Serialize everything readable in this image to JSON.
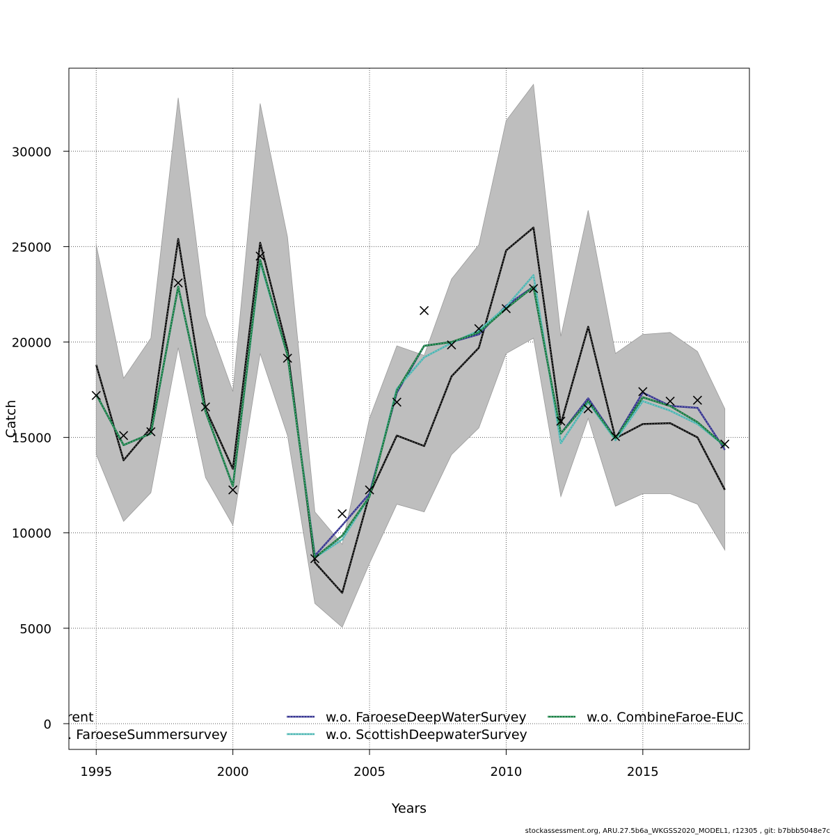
{
  "chart_data": {
    "type": "line",
    "xlabel": "Years",
    "ylabel": "Catch",
    "xlim": [
      1994,
      2018.9
    ],
    "ylim": [
      -1350,
      34350
    ],
    "x_ticks": [
      "1995",
      "2000",
      "2005",
      "2010",
      "2015"
    ],
    "y_ticks": [
      "0",
      "5000",
      "10000",
      "15000",
      "20000",
      "25000",
      "30000"
    ],
    "grid": true,
    "x": [
      1995,
      1996,
      1997,
      1998,
      1999,
      2000,
      2001,
      2002,
      2003,
      2004,
      2005,
      2006,
      2007,
      2008,
      2009,
      2010,
      2011,
      2012,
      2013,
      2014,
      2015,
      2016,
      2017,
      2018
    ],
    "confidence_band": {
      "upper": [
        25100,
        18100,
        20200,
        32800,
        21400,
        17400,
        32500,
        25500,
        11100,
        9400,
        16000,
        19800,
        19300,
        23300,
        25100,
        31600,
        33500,
        20300,
        26900,
        19400,
        20400,
        20500,
        19500,
        16500
      ],
      "lower": [
        14100,
        10600,
        12100,
        19700,
        12900,
        10400,
        19400,
        15100,
        6300,
        5050,
        8400,
        11500,
        11100,
        14100,
        15500,
        19400,
        20200,
        11900,
        16000,
        11400,
        12050,
        12050,
        11500,
        9100
      ],
      "color": "#bebebe"
    },
    "observed": {
      "marker": "x",
      "values": [
        17200,
        15100,
        15300,
        23100,
        16600,
        12250,
        24500,
        19150,
        8650,
        11000,
        12250,
        16850,
        21650,
        19850,
        20700,
        21750,
        22800,
        15850,
        16500,
        15050,
        17400,
        16900,
        16950,
        14650
      ]
    },
    "series": [
      {
        "name": "current",
        "color": "#000000",
        "dashed": false,
        "values": [
          17250,
          14600,
          15200,
          22900,
          16350,
          12450,
          24300,
          19300,
          8700,
          9850,
          11900,
          17450,
          19800,
          20000,
          20500,
          21750,
          22900,
          15200,
          16900,
          14950,
          17100,
          16650,
          15800,
          14550
        ]
      },
      {
        "name": "w.o. FaroeseSummersurvey",
        "color": "#000000",
        "dashed": true,
        "values": [
          18800,
          13800,
          15500,
          25400,
          16500,
          13350,
          25200,
          19600,
          8450,
          6850,
          12000,
          15100,
          14550,
          18200,
          19700,
          24800,
          26000,
          15700,
          20800,
          14950,
          15700,
          15750,
          15000,
          12250
        ]
      },
      {
        "name": "w.o. FaroeseDeepWaterSurvey",
        "color": "#2c2a8c",
        "dashed": true,
        "values": [
          17250,
          14600,
          15200,
          22900,
          16350,
          12450,
          24300,
          19300,
          8800,
          10400,
          12050,
          17350,
          19800,
          20000,
          20400,
          21900,
          22900,
          15200,
          17050,
          14950,
          17350,
          16650,
          16550,
          14350
        ]
      },
      {
        "name": "w.o. ScottishDeepwaterSurvey",
        "color": "#45b3b0",
        "dashed": true,
        "values": [
          17250,
          14600,
          15200,
          22900,
          16350,
          12450,
          24200,
          19300,
          8700,
          9650,
          11900,
          17550,
          19200,
          19950,
          20600,
          21850,
          23500,
          14700,
          16850,
          14850,
          16900,
          16400,
          15700,
          14550
        ]
      },
      {
        "name": "w.o. CombineFaroe-EUC",
        "color": "#0f7a3c",
        "dashed": true,
        "values": [
          17250,
          14600,
          15200,
          22900,
          16350,
          12450,
          24300,
          19300,
          8700,
          9850,
          11900,
          17450,
          19800,
          20000,
          20500,
          21750,
          22900,
          15200,
          16900,
          14950,
          17100,
          16650,
          15800,
          14550
        ]
      }
    ],
    "legend": {
      "placement": "bottom",
      "entries": [
        "current",
        "w.o. FaroeseSummersurvey",
        "w.o. FaroeseDeepWaterSurvey",
        "w.o. ScottishDeepwaterSurvey",
        "w.o. CombineFaroe-EUC"
      ]
    },
    "footer": "stockassessment.org, ARU.27.5b6a_WKGSS2020_MODEL1, r12305 , git: b7bbb5048e7c"
  }
}
